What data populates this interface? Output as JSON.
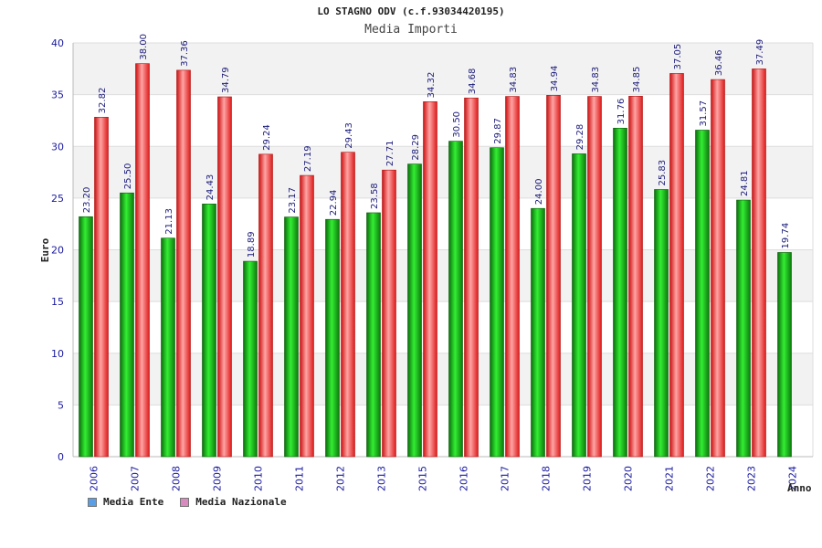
{
  "chart_data": {
    "type": "bar",
    "title": "LO STAGNO ODV (c.f.93034420195)",
    "subtitle": "Media Importi",
    "ylabel": "Euro",
    "xlabel": "Anno",
    "ylim": [
      0,
      40
    ],
    "yticks": [
      "0",
      "5",
      "10",
      "15",
      "20",
      "25",
      "30",
      "35",
      "40"
    ],
    "grid": "horizontal",
    "legend_position": "bottom-left",
    "categories": [
      "2006",
      "2007",
      "2008",
      "2009",
      "2010",
      "2011",
      "2012",
      "2013",
      "2015",
      "2016",
      "2017",
      "2018",
      "2019",
      "2020",
      "2021",
      "2022",
      "2023",
      "2024"
    ],
    "series": [
      {
        "name": "Media Ente",
        "color": "#11aa11",
        "swatch": "#5a9ee6",
        "values": [
          23.2,
          25.5,
          21.13,
          24.43,
          18.89,
          23.17,
          22.94,
          23.58,
          28.29,
          30.5,
          29.87,
          24.0,
          29.28,
          31.76,
          25.83,
          31.57,
          24.81,
          19.74
        ],
        "labels": [
          "23.20",
          "25.50",
          "21.13",
          "24.43",
          "18.89",
          "23.17",
          "22.94",
          "23.58",
          "28.29",
          "30.50",
          "29.87",
          "24.00",
          "29.28",
          "31.76",
          "25.83",
          "31.57",
          "24.81",
          "19.74"
        ]
      },
      {
        "name": "Media Nazionale",
        "color": "#ee2a2a",
        "swatch": "#d98abf",
        "values": [
          32.82,
          38.0,
          37.36,
          34.79,
          29.24,
          27.19,
          29.43,
          27.71,
          34.32,
          34.68,
          34.83,
          34.94,
          34.83,
          34.85,
          37.05,
          36.46,
          37.49,
          null
        ],
        "labels": [
          "32.82",
          "38.00",
          "37.36",
          "34.79",
          "29.24",
          "27.19",
          "29.43",
          "27.71",
          "34.32",
          "34.68",
          "34.83",
          "34.94",
          "34.83",
          "34.85",
          "37.05",
          "36.46",
          "37.49",
          ""
        ]
      }
    ]
  }
}
